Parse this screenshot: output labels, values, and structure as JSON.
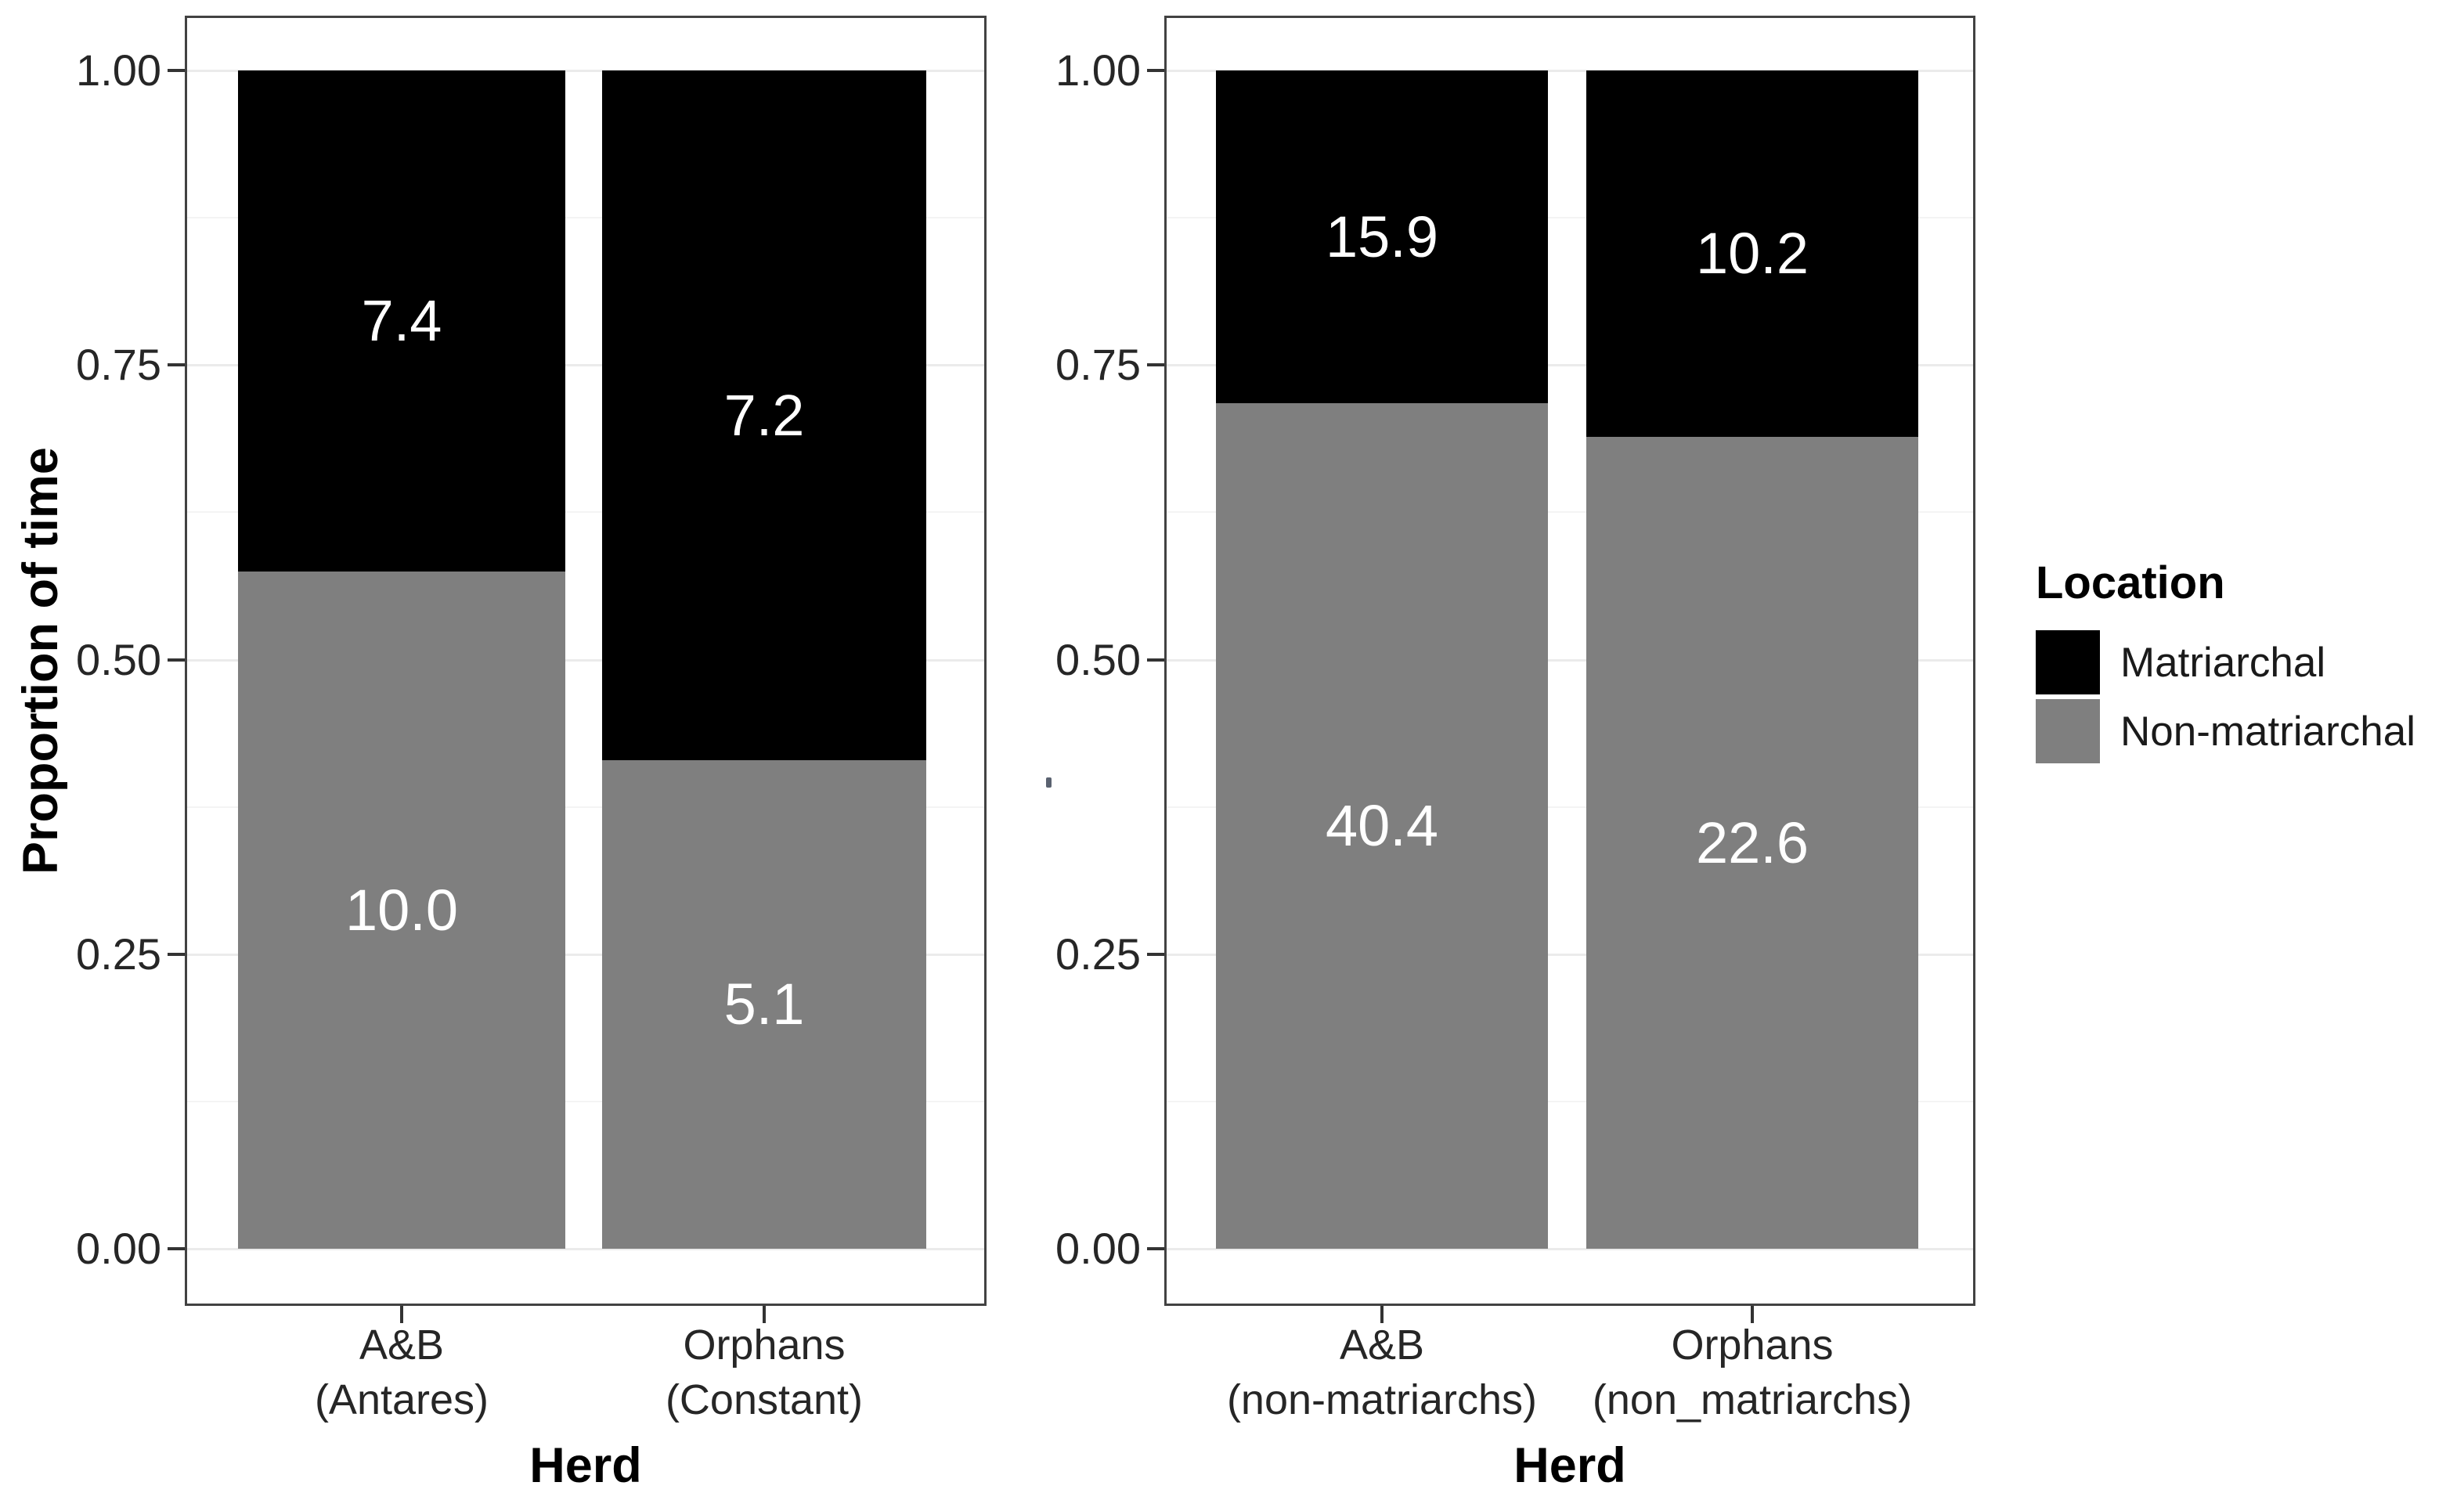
{
  "figure": {
    "y_axis_title": "Proportion of time",
    "background_color": "#ffffff"
  },
  "legend": {
    "title": "Location",
    "items": [
      {
        "label": "Matriarchal",
        "color": "#000000"
      },
      {
        "label": "Non-matriarchal",
        "color": "#7f7f7f"
      }
    ]
  },
  "chart_data": {
    "type": "bar",
    "subtype": "stacked_proportion_columns",
    "ylabel": "Proportion of time",
    "ylim": [
      0,
      1
    ],
    "grid": "major-and-minor-horizontal",
    "legend_position": "right",
    "legend_title": "Location",
    "series_names": [
      "Matriarchal",
      "Non-matriarchal"
    ],
    "y_ticks": [
      {
        "value": 1.0,
        "label": "1.00"
      },
      {
        "value": 0.75,
        "label": "0.75"
      },
      {
        "value": 0.5,
        "label": "0.50"
      },
      {
        "value": 0.25,
        "label": "0.25"
      },
      {
        "value": 0.0,
        "label": "0.00"
      }
    ],
    "panels": [
      {
        "xlabel": "Herd",
        "bars": [
          {
            "category_lines": [
              "A&B",
              "(Antares)"
            ],
            "segments": [
              {
                "location": "Non-matriarchal",
                "value": 10.0,
                "display": "10.0",
                "color": "#7f7f7f"
              },
              {
                "location": "Matriarchal",
                "value": 7.4,
                "display": "7.4",
                "color": "#000000"
              }
            ]
          },
          {
            "category_lines": [
              "Orphans",
              "(Constant)"
            ],
            "segments": [
              {
                "location": "Non-matriarchal",
                "value": 5.1,
                "display": "5.1",
                "color": "#7f7f7f"
              },
              {
                "location": "Matriarchal",
                "value": 7.2,
                "display": "7.2",
                "color": "#000000"
              }
            ]
          }
        ]
      },
      {
        "xlabel": "Herd",
        "bars": [
          {
            "category_lines": [
              "A&B",
              "(non-matriarchs)"
            ],
            "segments": [
              {
                "location": "Non-matriarchal",
                "value": 40.4,
                "display": "40.4",
                "color": "#7f7f7f"
              },
              {
                "location": "Matriarchal",
                "value": 15.9,
                "display": "15.9",
                "color": "#000000"
              }
            ]
          },
          {
            "category_lines": [
              "Orphans",
              "(non_matriarchs)"
            ],
            "segments": [
              {
                "location": "Non-matriarchal",
                "value": 22.6,
                "display": "22.6",
                "color": "#7f7f7f"
              },
              {
                "location": "Matriarchal",
                "value": 10.2,
                "display": "10.2",
                "color": "#000000"
              }
            ]
          }
        ]
      }
    ]
  }
}
